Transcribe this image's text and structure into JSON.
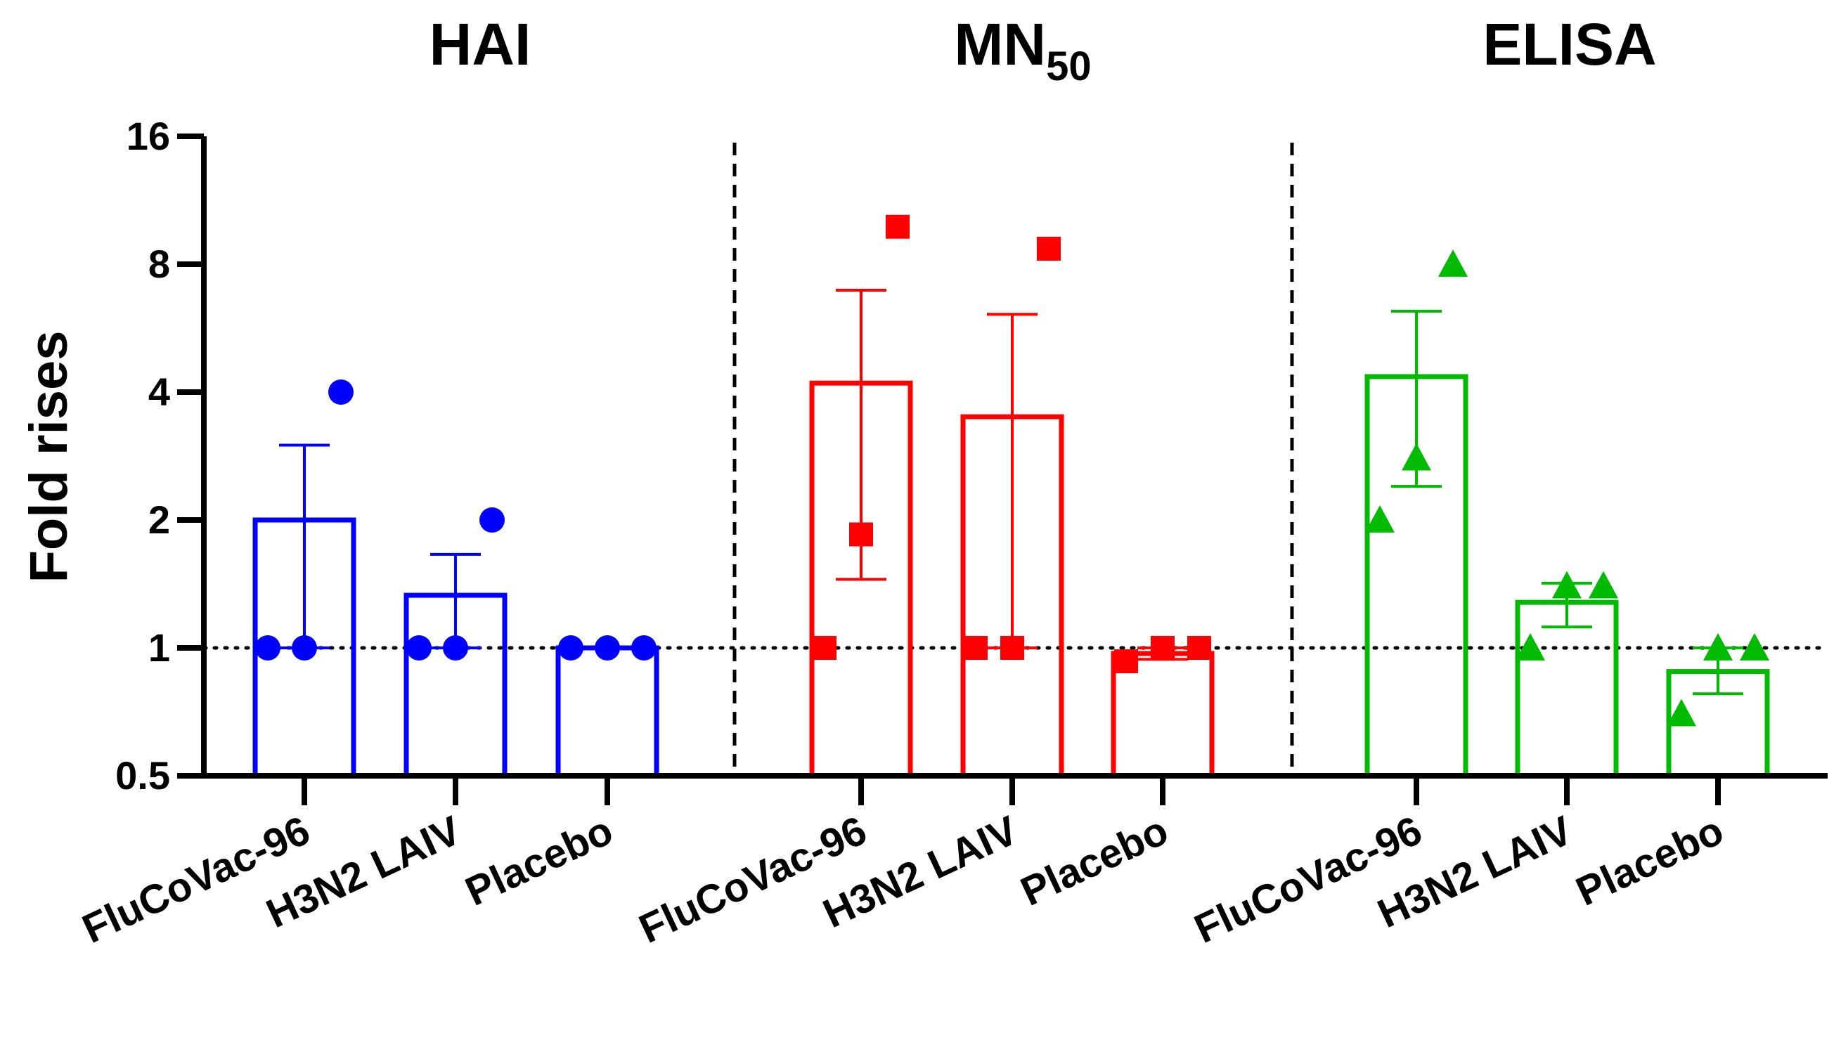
{
  "chart_data": {
    "type": "bar",
    "yscale": "log2",
    "ylabel": "Fold rises",
    "ylim": [
      0.5,
      16
    ],
    "yticks": [
      {
        "value": 0.5,
        "label": "0.5"
      },
      {
        "value": 1,
        "label": "1"
      },
      {
        "value": 2,
        "label": "2"
      },
      {
        "value": 4,
        "label": "4"
      },
      {
        "value": 8,
        "label": "8"
      },
      {
        "value": 16,
        "label": "16"
      }
    ],
    "reference_line": 1,
    "panels": [
      {
        "title": "HAI",
        "title_sub": "",
        "color": "#0000ff",
        "marker": "circle",
        "groups": [
          {
            "name": "FluCoVac-96",
            "mean": 2.0,
            "sem_low": 1.0,
            "sem_high": 3.0,
            "points": [
              1,
              1,
              4
            ]
          },
          {
            "name": "H3N2 LAIV",
            "mean": 1.33,
            "sem_low": 1.0,
            "sem_high": 1.66,
            "points": [
              1,
              1,
              2
            ]
          },
          {
            "name": "Placebo",
            "mean": 1.0,
            "sem_low": 1.0,
            "sem_high": 1.0,
            "points": [
              1,
              1,
              1
            ]
          }
        ]
      },
      {
        "title": "MN",
        "title_sub": "50",
        "color": "#ff0000",
        "marker": "square",
        "groups": [
          {
            "name": "FluCoVac-96",
            "mean": 4.2,
            "sem_low": 1.45,
            "sem_high": 6.95,
            "points": [
              1,
              1.85,
              9.8
            ]
          },
          {
            "name": "H3N2 LAIV",
            "mean": 3.5,
            "sem_low": 1.0,
            "sem_high": 6.1,
            "points": [
              1,
              1,
              8.7
            ]
          },
          {
            "name": "Placebo",
            "mean": 0.97,
            "sem_low": 0.94,
            "sem_high": 1.0,
            "points": [
              0.93,
              1,
              1
            ]
          }
        ]
      },
      {
        "title": "ELISA",
        "title_sub": "",
        "color": "#00bb00",
        "marker": "triangle",
        "groups": [
          {
            "name": "FluCoVac-96",
            "mean": 4.35,
            "sem_low": 2.4,
            "sem_high": 6.2,
            "points": [
              2,
              2.8,
              8
            ]
          },
          {
            "name": "H3N2 LAIV",
            "mean": 1.28,
            "sem_low": 1.12,
            "sem_high": 1.42,
            "points": [
              1,
              1.4,
              1.4
            ]
          },
          {
            "name": "Placebo",
            "mean": 0.88,
            "sem_low": 0.78,
            "sem_high": 1.0,
            "points": [
              0.7,
              1,
              1
            ]
          }
        ]
      }
    ]
  }
}
